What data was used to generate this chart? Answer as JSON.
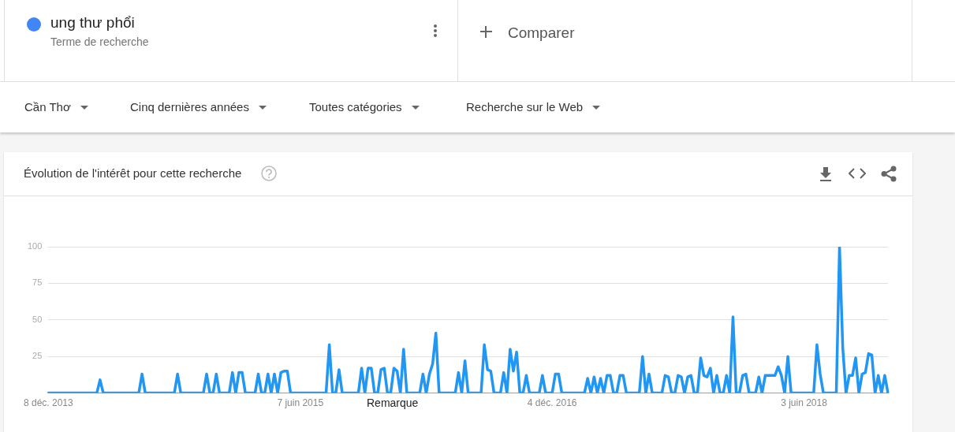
{
  "chart_data": {
    "type": "line",
    "title": "Évolution de l'intérêt pour cette recherche",
    "annotations": [
      "Terme de recherche",
      "Comparer",
      "Cần Thơ",
      "Cinq dernières années",
      "Toutes catégories",
      "Recherche sur le Web",
      "Remarque"
    ],
    "legend": "top left",
    "grid": "y",
    "marker": "none",
    "line_style": "solid",
    "ylim": [
      0,
      100
    ],
    "yticks": [
      25,
      50,
      75,
      100
    ],
    "categories": [
      "8 déc. 2013",
      null,
      null,
      null,
      null,
      null,
      null,
      null,
      null,
      null,
      null,
      null,
      null,
      null,
      null,
      null,
      null,
      null,
      null,
      null,
      null,
      null,
      null,
      null,
      null,
      null,
      null,
      null,
      null,
      null,
      null,
      null,
      null,
      null,
      null,
      null,
      null,
      null,
      null,
      null,
      null,
      null,
      null,
      null,
      null,
      null,
      null,
      null,
      null,
      null,
      null,
      null,
      null,
      null,
      null,
      null,
      null,
      null,
      null,
      null,
      null,
      null,
      null,
      null,
      null,
      null,
      null,
      null,
      null,
      null,
      null,
      null,
      null,
      null,
      null,
      null,
      null,
      null,
      "7 juin 2015",
      null,
      null,
      null,
      null,
      null,
      null,
      null,
      null,
      null,
      null,
      null,
      null,
      null,
      null,
      null,
      null,
      null,
      null,
      null,
      null,
      null,
      null,
      null,
      null,
      null,
      null,
      null,
      null,
      null,
      null,
      null,
      null,
      null,
      null,
      null,
      null,
      null,
      null,
      null,
      null,
      null,
      null,
      null,
      null,
      null,
      null,
      null,
      null,
      null,
      null,
      null,
      null,
      null,
      null,
      null,
      null,
      null,
      null,
      null,
      null,
      null,
      null,
      null,
      null,
      null,
      null,
      null,
      null,
      null,
      null,
      null,
      null,
      null,
      null,
      null,
      null,
      null,
      "4 déc. 2016",
      null,
      null,
      null,
      null,
      null,
      null,
      null,
      null,
      null,
      null,
      null,
      null,
      null,
      null,
      null,
      null,
      null,
      null,
      null,
      null,
      null,
      null,
      null,
      null,
      null,
      null,
      null,
      null,
      null,
      null,
      null,
      null,
      null,
      null,
      null,
      null,
      null,
      null,
      null,
      null,
      null,
      null,
      null,
      null,
      null,
      null,
      null,
      null,
      null,
      null,
      null,
      null,
      null,
      null,
      null,
      null,
      null,
      null,
      null,
      null,
      null,
      null,
      null,
      null,
      null,
      null,
      null,
      null,
      null,
      null,
      null,
      null,
      null,
      null,
      null,
      null,
      null,
      "3 juin 2018",
      null,
      null,
      null,
      null,
      null,
      null,
      null,
      null,
      null,
      null,
      null,
      null,
      null,
      null,
      null,
      null,
      null,
      null,
      null,
      null,
      null,
      null,
      null,
      null,
      null,
      null
    ],
    "series": [
      {
        "name": "ung thư phổi",
        "color": "#2196f3",
        "values": [
          0,
          0,
          0,
          0,
          0,
          0,
          0,
          0,
          0,
          0,
          0,
          0,
          0,
          0,
          0,
          0,
          9,
          0,
          0,
          0,
          0,
          0,
          0,
          0,
          0,
          0,
          0,
          0,
          0,
          13,
          0,
          0,
          0,
          0,
          0,
          0,
          0,
          0,
          0,
          0,
          13,
          0,
          0,
          0,
          0,
          0,
          0,
          0,
          0,
          13,
          0,
          0,
          13,
          0,
          0,
          0,
          0,
          14,
          0,
          14,
          14,
          0,
          0,
          0,
          0,
          13,
          0,
          0,
          13,
          0,
          13,
          0,
          14,
          15,
          15,
          0,
          0,
          0,
          0,
          0,
          0,
          0,
          0,
          0,
          0,
          0,
          0,
          33,
          0,
          0,
          16,
          0,
          0,
          0,
          0,
          0,
          0,
          17,
          0,
          17,
          17,
          0,
          0,
          16,
          17,
          0,
          0,
          17,
          15,
          0,
          30,
          0,
          0,
          0,
          0,
          0,
          13,
          0,
          13,
          20,
          41,
          0,
          0,
          0,
          0,
          0,
          0,
          14,
          0,
          22,
          0,
          0,
          0,
          0,
          0,
          33,
          16,
          15,
          0,
          0,
          0,
          14,
          0,
          30,
          15,
          28,
          0,
          0,
          12,
          0,
          0,
          0,
          0,
          12,
          0,
          0,
          0,
          13,
          13,
          0,
          0,
          0,
          0,
          0,
          0,
          0,
          0,
          10,
          0,
          11,
          0,
          10,
          0,
          12,
          12,
          0,
          0,
          12,
          12,
          0,
          0,
          0,
          0,
          0,
          25,
          0,
          13,
          0,
          0,
          0,
          0,
          12,
          11,
          0,
          0,
          12,
          11,
          0,
          11,
          12,
          0,
          0,
          24,
          12,
          11,
          17,
          0,
          12,
          0,
          0,
          12,
          0,
          52,
          0,
          0,
          12,
          13,
          0,
          0,
          0,
          11,
          0,
          12,
          12,
          12,
          12,
          18,
          12,
          0,
          25,
          0,
          0,
          0,
          0,
          0,
          0,
          0,
          0,
          33,
          13,
          0,
          0,
          0,
          0,
          0,
          100,
          31,
          0,
          12,
          12,
          24,
          0,
          13,
          14,
          27,
          26,
          0,
          12,
          0,
          12,
          0
        ]
      }
    ]
  }
}
